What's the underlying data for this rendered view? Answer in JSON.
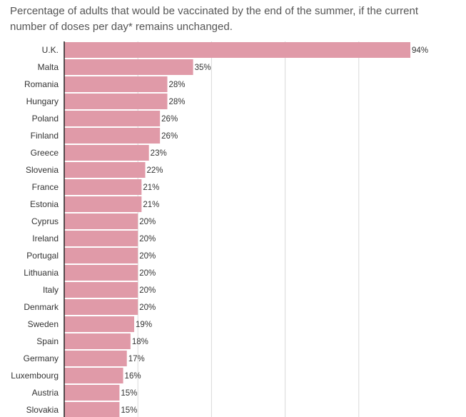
{
  "title": "Percentage of adults that would be vaccinated by the end of the summer, if the current number of doses per day* remains unchanged.",
  "chart_data": {
    "type": "bar",
    "orientation": "horizontal",
    "title": "Percentage of adults that would be vaccinated by the end of the summer, if the current number of doses per day* remains unchanged.",
    "xlabel": "",
    "ylabel": "",
    "categories": [
      "U.K.",
      "Malta",
      "Romania",
      "Hungary",
      "Poland",
      "Finland",
      "Greece",
      "Slovenia",
      "France",
      "Estonia",
      "Cyprus",
      "Ireland",
      "Portugal",
      "Lithuania",
      "Italy",
      "Denmark",
      "Sweden",
      "Spain",
      "Germany",
      "Luxembourg",
      "Austria",
      "Slovakia"
    ],
    "values": [
      94,
      35,
      28,
      28,
      26,
      26,
      23,
      22,
      21,
      21,
      20,
      20,
      20,
      20,
      20,
      20,
      19,
      18,
      17,
      16,
      15,
      15
    ],
    "value_labels": [
      "94%",
      "35%",
      "28%",
      "28%",
      "26%",
      "26%",
      "23%",
      "22%",
      "21%",
      "21%",
      "20%",
      "20%",
      "20%",
      "20%",
      "20%",
      "20%",
      "19%",
      "18%",
      "17%",
      "16%",
      "15%",
      "15%"
    ],
    "xlim": [
      0,
      100
    ],
    "grid": true,
    "colors": {
      "bar": "#e09aa8",
      "axis": "#222222",
      "grid": "#d9d9d9",
      "text": "#333333"
    }
  }
}
